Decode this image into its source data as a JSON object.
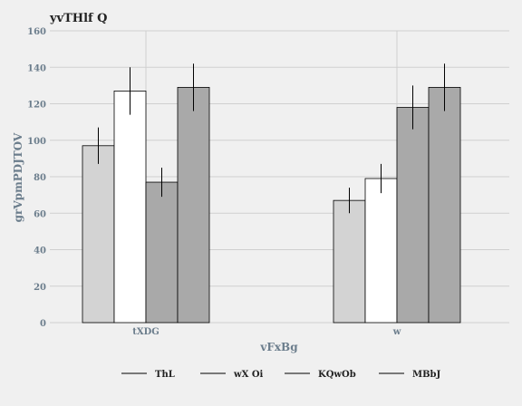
{
  "chart_data": {
    "type": "bar",
    "title": "yvTHlf  Q",
    "xlabel": "vFxBg",
    "ylabel": "grVpmPDJTOV",
    "categories": [
      "tXDG",
      "w"
    ],
    "ylim": [
      0,
      160
    ],
    "yticks": [
      0,
      20,
      40,
      60,
      80,
      100,
      120,
      140,
      160
    ],
    "grid": true,
    "legend_position": "bottom",
    "series": [
      {
        "name": "ThL",
        "values": [
          97,
          67
        ],
        "errors": [
          10,
          7
        ],
        "color": "#d3d3d3"
      },
      {
        "name": "wX Oi",
        "values": [
          127,
          79
        ],
        "errors": [
          13,
          8
        ],
        "color": "#ffffff"
      },
      {
        "name": "KQwOb",
        "values": [
          77,
          118
        ],
        "errors": [
          8,
          12
        ],
        "color": "#a9a9a9"
      },
      {
        "name": "MBbJ",
        "values": [
          129,
          129
        ],
        "errors": [
          13,
          13
        ],
        "color": "#a9a9a9"
      }
    ]
  }
}
